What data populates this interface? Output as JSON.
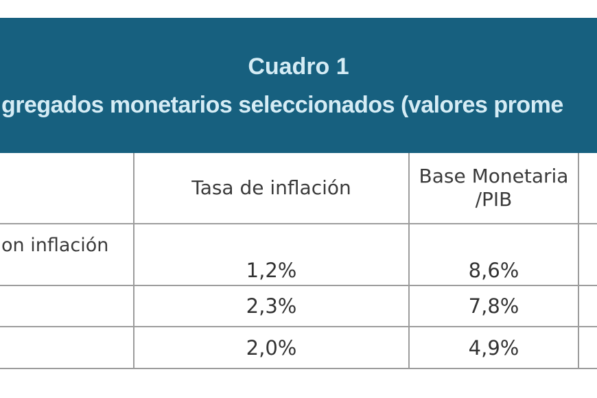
{
  "banner": {
    "bg_color": "#17607f",
    "text_color": "#d5ecf5",
    "title": "Cuadro 1",
    "subtitle": "gregados monetarios seleccionados (valores prome"
  },
  "table": {
    "border_color": "#9c9c9c",
    "headers": {
      "col1": "",
      "tasa": "Tasa de inflación",
      "base_line1": "Base Monetaria",
      "base_line2": "/PIB",
      "col4": ""
    },
    "rows": [
      {
        "label": "on inflación",
        "tasa": "1,2%",
        "base": "8,6%",
        "extra": ""
      },
      {
        "label": "",
        "tasa": "2,3%",
        "base": "7,8%",
        "extra": ""
      },
      {
        "label": "",
        "tasa": "2,0%",
        "base": "4,9%",
        "extra": ""
      }
    ]
  },
  "chart_data": {
    "type": "table",
    "title": "Cuadro 1",
    "subtitle_visible": "gregados monetarios seleccionados (valores prome",
    "columns": [
      "",
      "Tasa de inflación",
      "Base Monetaria /PIB"
    ],
    "rows": [
      {
        "label": "on inflación",
        "values": [
          "1,2%",
          "8,6%"
        ]
      },
      {
        "label": "",
        "values": [
          "2,3%",
          "7,8%"
        ]
      },
      {
        "label": "",
        "values": [
          "2,0%",
          "4,9%"
        ]
      }
    ],
    "layout": {
      "banner_position": "top",
      "clipped_edges": [
        "left",
        "right"
      ],
      "grid": "gray 2px cell borders"
    }
  }
}
